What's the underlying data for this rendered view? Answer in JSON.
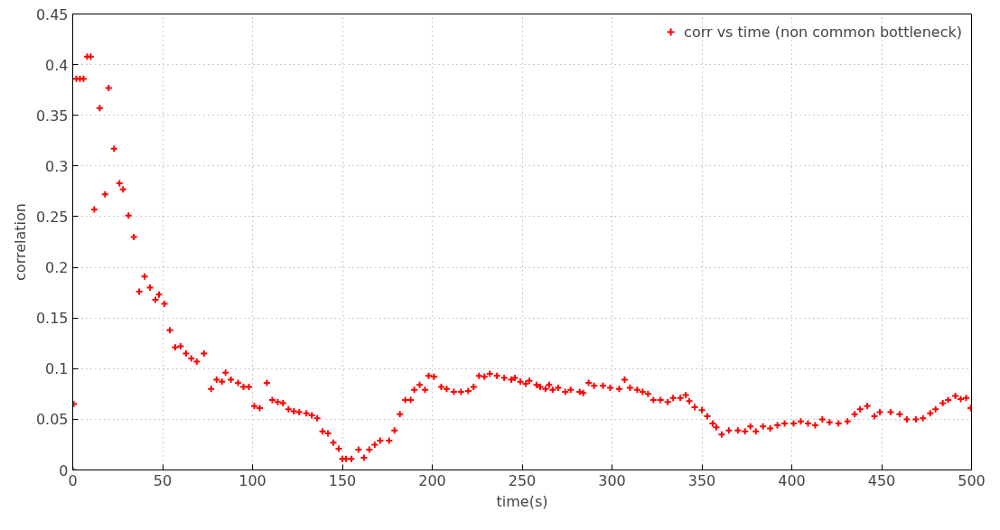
{
  "chart_data": {
    "type": "scatter",
    "xlabel": "time(s)",
    "ylabel": "correlation",
    "xlim": [
      0,
      500
    ],
    "ylim": [
      0,
      0.45
    ],
    "xticks": [
      0,
      50,
      100,
      150,
      200,
      250,
      300,
      350,
      400,
      450,
      500
    ],
    "yticks": [
      0,
      0.05,
      0.1,
      0.15,
      0.2,
      0.25,
      0.3,
      0.35,
      0.4,
      0.45
    ],
    "grid": true,
    "legend": "top right",
    "marker": "cross",
    "series": [
      {
        "name": "corr vs time (non common bottleneck)",
        "color": "#ff0000",
        "x": [
          0,
          0.5,
          2,
          4,
          6,
          8,
          10,
          12,
          15,
          18,
          20,
          23,
          26,
          28,
          31,
          34,
          37,
          40,
          43,
          46,
          48,
          51,
          54,
          57,
          60,
          63,
          66,
          69,
          73,
          77,
          80,
          83,
          85,
          88,
          92,
          95,
          98,
          101,
          104,
          108,
          111,
          114,
          117,
          120,
          123,
          126,
          130,
          133,
          136,
          139,
          142,
          145,
          148,
          150,
          152,
          155,
          159,
          162,
          165,
          168,
          171,
          176,
          179,
          182,
          185,
          188,
          190,
          193,
          196,
          198,
          201,
          205,
          208,
          212,
          216,
          220,
          223,
          226,
          229,
          232,
          236,
          240,
          244,
          246,
          249,
          252,
          254,
          258,
          260,
          263,
          265,
          267,
          270,
          274,
          277,
          282,
          284,
          287,
          290,
          295,
          299,
          304,
          307,
          310,
          314,
          317,
          320,
          323,
          327,
          331,
          334,
          338,
          341,
          343,
          346,
          350,
          353,
          356,
          358,
          361,
          365,
          370,
          374,
          377,
          380,
          384,
          388,
          392,
          396,
          401,
          405,
          409,
          413,
          417,
          421,
          426,
          431,
          435,
          438,
          442,
          446,
          449,
          455,
          460,
          464,
          469,
          473,
          477,
          480,
          484,
          487,
          491,
          494,
          497,
          499.5
        ],
        "values": [
          0,
          0.065,
          0.386,
          0.386,
          0.386,
          0.408,
          0.408,
          0.257,
          0.357,
          0.272,
          0.377,
          0.317,
          0.283,
          0.277,
          0.251,
          0.23,
          0.176,
          0.191,
          0.18,
          0.168,
          0.173,
          0.164,
          0.138,
          0.121,
          0.122,
          0.115,
          0.11,
          0.107,
          0.115,
          0.08,
          0.089,
          0.087,
          0.096,
          0.089,
          0.086,
          0.082,
          0.082,
          0.063,
          0.061,
          0.086,
          0.069,
          0.067,
          0.066,
          0.06,
          0.058,
          0.057,
          0.056,
          0.054,
          0.051,
          0.038,
          0.036,
          0.027,
          0.021,
          0.011,
          0.011,
          0.011,
          0.02,
          0.012,
          0.02,
          0.025,
          0.029,
          0.029,
          0.039,
          0.055,
          0.069,
          0.069,
          0.079,
          0.084,
          0.079,
          0.093,
          0.092,
          0.082,
          0.08,
          0.077,
          0.077,
          0.078,
          0.082,
          0.093,
          0.092,
          0.095,
          0.093,
          0.091,
          0.089,
          0.091,
          0.087,
          0.085,
          0.088,
          0.084,
          0.082,
          0.08,
          0.084,
          0.079,
          0.081,
          0.077,
          0.079,
          0.077,
          0.076,
          0.086,
          0.083,
          0.083,
          0.081,
          0.08,
          0.089,
          0.081,
          0.079,
          0.077,
          0.075,
          0.069,
          0.069,
          0.067,
          0.071,
          0.071,
          0.074,
          0.068,
          0.062,
          0.059,
          0.053,
          0.046,
          0.042,
          0.035,
          0.039,
          0.039,
          0.038,
          0.043,
          0.038,
          0.043,
          0.041,
          0.044,
          0.046,
          0.046,
          0.048,
          0.046,
          0.044,
          0.05,
          0.047,
          0.046,
          0.048,
          0.055,
          0.06,
          0.063,
          0.053,
          0.057,
          0.057,
          0.055,
          0.05,
          0.05,
          0.051,
          0.056,
          0.06,
          0.066,
          0.069,
          0.073,
          0.07,
          0.071,
          0.061
        ]
      }
    ]
  }
}
